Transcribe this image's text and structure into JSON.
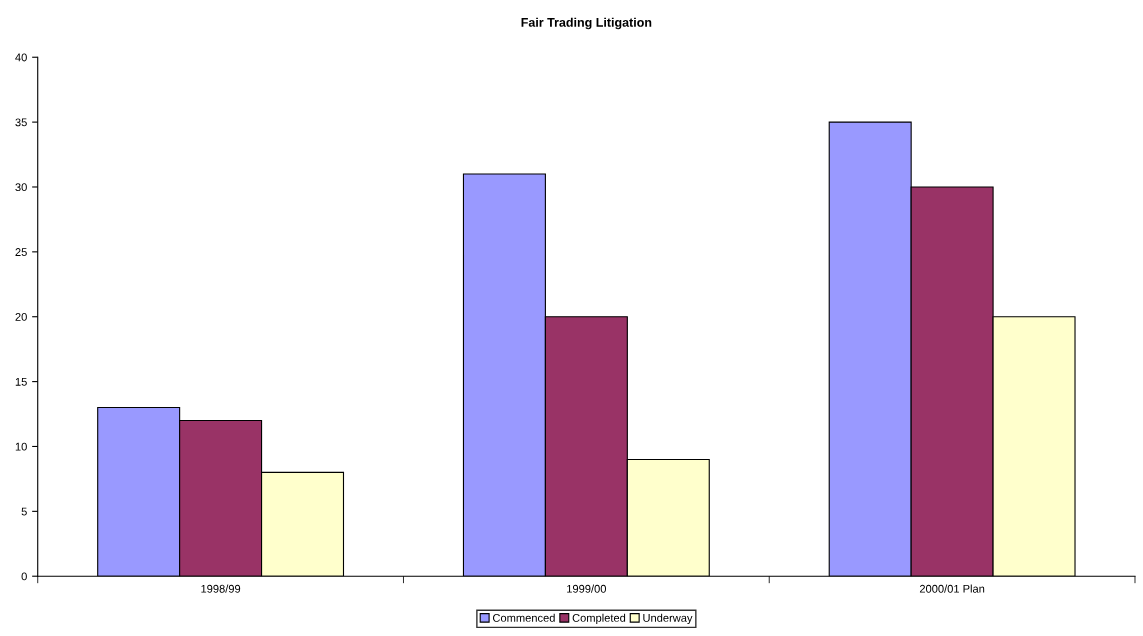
{
  "chart_data": {
    "type": "bar",
    "title": "Fair Trading Litigation",
    "categories": [
      "1998/99",
      "1999/00",
      "2000/01 Plan"
    ],
    "series": [
      {
        "name": "Commenced",
        "color": "#9999ff",
        "values": [
          13,
          31,
          35
        ]
      },
      {
        "name": "Completed",
        "color": "#993366",
        "values": [
          12,
          20,
          30
        ]
      },
      {
        "name": "Underway",
        "color": "#ffffcc",
        "values": [
          8,
          9,
          20
        ]
      }
    ],
    "ylim": [
      0,
      40
    ],
    "yticks": [
      0,
      5,
      10,
      15,
      20,
      25,
      30,
      35,
      40
    ],
    "grid": false,
    "legend": "bottom"
  }
}
